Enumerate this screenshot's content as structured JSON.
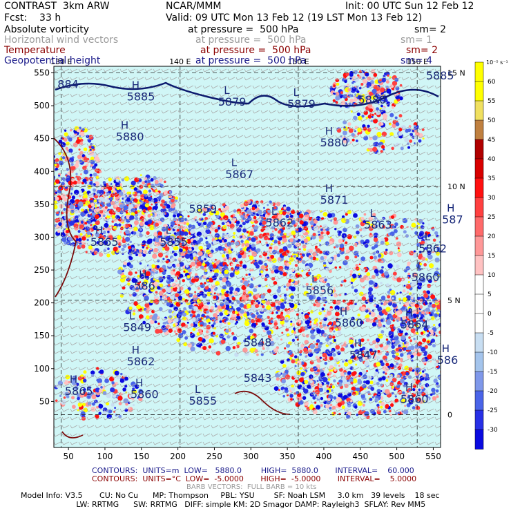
{
  "header": {
    "model": "CONTRAST  3km ARW",
    "org": "NCAR/MMM",
    "init": "Init: 00 UTC Sun 12 Feb 12",
    "fcst": "Fcst:    33 h",
    "valid": "Valid: 09 UTC Mon 13 Feb 12 (19 LST Mon 13 Feb 12)"
  },
  "fields": [
    {
      "name": "Absolute vorticity",
      "level": "at pressure =  500 hPa",
      "sm": "sm= 2",
      "color": "#000000"
    },
    {
      "name": "Horizontal wind vectors",
      "level": "at pressure =  500 hPa",
      "sm": "sm= 1",
      "color": "#9a9a9a"
    },
    {
      "name": "Temperature",
      "level": "at pressure =  500 hPa",
      "sm": "sm= 2",
      "color": "#8b0000"
    },
    {
      "name": "Geopotential height",
      "level": "at pressure =  500 hPa",
      "sm": "sm= 4",
      "color": "#1a1a8a"
    }
  ],
  "footer": {
    "contours_blue": "CONTOURS:  UNITS=m  LOW=   5880.0        HIGH=  5880.0       INTERVAL=    60.000",
    "contours_red": "CONTOURS:  UNITS=°C  LOW=  -5.0000       HIGH=  -5.0000       INTERVAL=    5.0000",
    "barb": "BARB VECTORS:  FULL BARB = 10 kts",
    "model_info_1": "Model Info: V3.5       CU: No Cu      MP: Thompson     PBL: YSU        SF: Noah LSM     3.0 km   39 levels    18 sec",
    "model_info_2": "                       LW: RRTMG      SW: RRTMG   DIFF: simple KM: 2D Smagor DAMP: Rayleigh3  SFLAY: Rev MM5"
  },
  "chart_data": {
    "type": "heatmap",
    "title": "Absolute vorticity / Horizontal wind vectors / Temperature / Geopotential height at 500 hPa",
    "xlim": [
      30,
      560
    ],
    "ylim": [
      -20,
      560
    ],
    "x_ticks": [
      "50",
      "100",
      "150",
      "200",
      "250",
      "300",
      "350",
      "400",
      "450",
      "500",
      "550"
    ],
    "y_ticks": [
      "50",
      "100",
      "150",
      "200",
      "250",
      "300",
      "350",
      "400",
      "450",
      "500",
      "550"
    ],
    "lon_labels": [
      {
        "text": "130 E",
        "x": 40
      },
      {
        "text": "140 E",
        "x": 203
      },
      {
        "text": "150 E",
        "x": 365
      },
      {
        "text": "150 E",
        "x": 528
      }
    ],
    "lat_labels": [
      {
        "text": "15 N",
        "y": 550
      },
      {
        "text": "10 N",
        "y": 377
      },
      {
        "text": "5 N",
        "y": 204
      },
      {
        "text": "0",
        "y": 30
      }
    ],
    "colorbar": {
      "unit": "10⁻⁵ s⁻¹",
      "labels": [
        "60",
        "55",
        "50",
        "45",
        "40",
        "35",
        "30",
        "25",
        "20",
        "15",
        "10",
        "5",
        "0",
        "-5",
        "-10",
        "-15",
        "-20",
        "-25",
        "-30"
      ],
      "colors": [
        "#ffff00",
        "#ffff00",
        "#f0e060",
        "#c08040",
        "#b00000",
        "#d80000",
        "#ff1010",
        "#ff4040",
        "#ff6a6a",
        "#ff9898",
        "#ffc2c2",
        "#ffffff",
        "#ffffff",
        "#ffffff",
        "#c8def2",
        "#a4c4ec",
        "#7f98ea",
        "#4a64e8",
        "#2830e6",
        "#0a0ae0"
      ]
    },
    "height_centers": [
      {
        "label": "884",
        "kind": "",
        "x": 35,
        "y": 527
      },
      {
        "label": "5885",
        "kind": "H",
        "x": 130,
        "y": 508
      },
      {
        "label": "5879",
        "kind": "L",
        "x": 255,
        "y": 500
      },
      {
        "label": "5879",
        "kind": "L",
        "x": 350,
        "y": 497
      },
      {
        "label": "5880",
        "kind": "",
        "x": 447,
        "y": 503
      },
      {
        "label": "5885",
        "kind": "",
        "x": 540,
        "y": 540
      },
      {
        "label": "5880",
        "kind": "H",
        "x": 115,
        "y": 447
      },
      {
        "label": "5880",
        "kind": "H",
        "x": 395,
        "y": 438
      },
      {
        "label": "5867",
        "kind": "L",
        "x": 265,
        "y": 390
      },
      {
        "label": "5871",
        "kind": "H",
        "x": 395,
        "y": 351
      },
      {
        "label": "5859",
        "kind": "",
        "x": 215,
        "y": 337
      },
      {
        "label": "5862",
        "kind": "L",
        "x": 320,
        "y": 316
      },
      {
        "label": "5863",
        "kind": "L",
        "x": 455,
        "y": 313
      },
      {
        "label": "587",
        "kind": "H",
        "x": 562,
        "y": 321
      },
      {
        "label": "5865",
        "kind": "H",
        "x": 80,
        "y": 287
      },
      {
        "label": "5855",
        "kind": "L",
        "x": 175,
        "y": 287
      },
      {
        "label": "5862",
        "kind": "L",
        "x": 530,
        "y": 277
      },
      {
        "label": "5860",
        "kind": "L",
        "x": 520,
        "y": 233
      },
      {
        "label": "586",
        "kind": "H",
        "x": 140,
        "y": 220
      },
      {
        "label": "5856",
        "kind": "L",
        "x": 375,
        "y": 213
      },
      {
        "label": "5860",
        "kind": "H",
        "x": 415,
        "y": 164
      },
      {
        "label": "5864",
        "kind": "H",
        "x": 505,
        "y": 161
      },
      {
        "label": "5849",
        "kind": "L",
        "x": 125,
        "y": 157
      },
      {
        "label": "5848",
        "kind": "",
        "x": 290,
        "y": 134
      },
      {
        "label": "5847",
        "kind": "H",
        "x": 435,
        "y": 115
      },
      {
        "label": "586",
        "kind": "H",
        "x": 555,
        "y": 107
      },
      {
        "label": "5862",
        "kind": "H",
        "x": 130,
        "y": 105
      },
      {
        "label": "5843",
        "kind": "",
        "x": 290,
        "y": 80
      },
      {
        "label": "5865",
        "kind": "H",
        "x": 45,
        "y": 60
      },
      {
        "label": "5860",
        "kind": "H",
        "x": 135,
        "y": 55
      },
      {
        "label": "5855",
        "kind": "L",
        "x": 215,
        "y": 45
      },
      {
        "label": "5860",
        "kind": "H",
        "x": 505,
        "y": 48
      }
    ]
  }
}
